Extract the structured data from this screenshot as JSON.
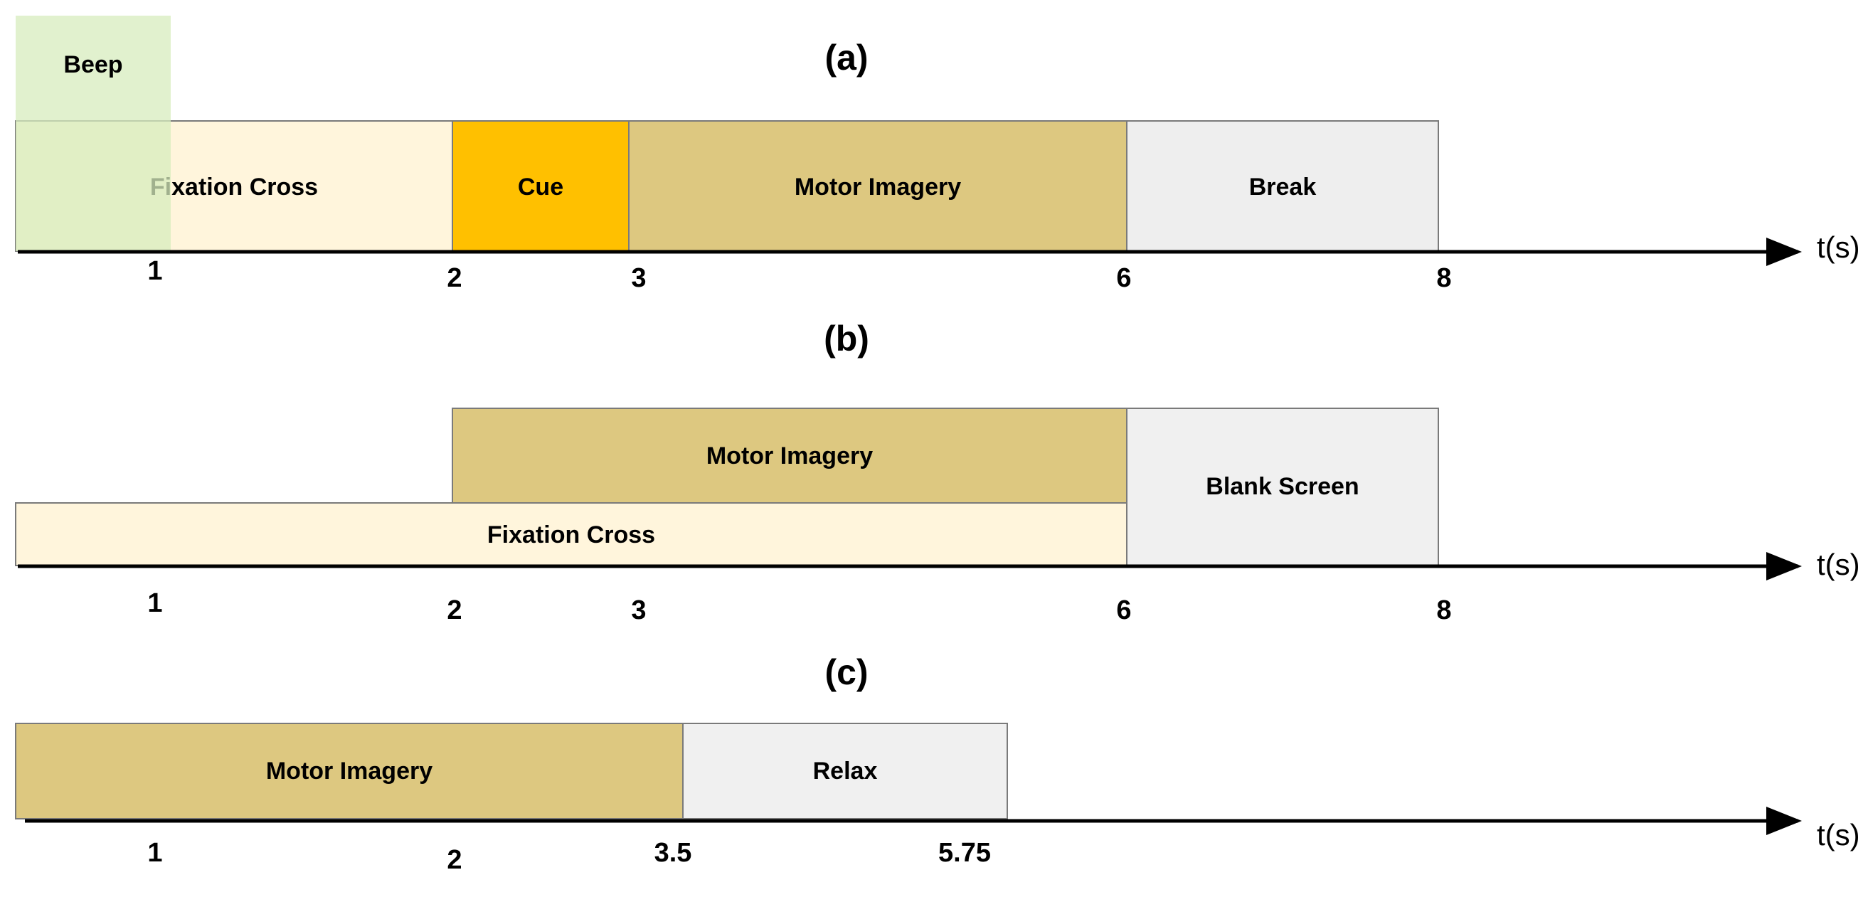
{
  "panels": [
    {
      "id": "a",
      "label": "(a)",
      "axis_label": "t(s)",
      "blocks": [
        {
          "id": "fixation",
          "label": "Fixation Cross",
          "color": "#FFF5DC"
        },
        {
          "id": "cue",
          "label": "Cue",
          "color": "#FFC000"
        },
        {
          "id": "motor",
          "label": "Motor Imagery",
          "color": "#DDC880"
        },
        {
          "id": "break",
          "label": "Break",
          "color": "#EEEEEE"
        },
        {
          "id": "beep",
          "label": "Beep",
          "color": "#D7ECBE"
        }
      ],
      "ticks": [
        "1",
        "2",
        "3",
        "6",
        "8"
      ]
    },
    {
      "id": "b",
      "label": "(b)",
      "axis_label": "t(s)",
      "blocks": [
        {
          "id": "motor",
          "label": "Motor Imagery",
          "color": "#DDC880"
        },
        {
          "id": "fixation",
          "label": "Fixation Cross",
          "color": "#FFF5DC"
        },
        {
          "id": "blank",
          "label": "Blank Screen",
          "color": "#F0F0F0"
        }
      ],
      "ticks": [
        "1",
        "2",
        "3",
        "6",
        "8"
      ]
    },
    {
      "id": "c",
      "label": "(c)",
      "axis_label": "t(s)",
      "blocks": [
        {
          "id": "motor",
          "label": "Motor Imagery",
          "color": "#DDC880"
        },
        {
          "id": "relax",
          "label": "Relax",
          "color": "#F0F0F0"
        }
      ],
      "ticks": [
        "1",
        "2",
        "3.5",
        "5.75"
      ]
    }
  ]
}
